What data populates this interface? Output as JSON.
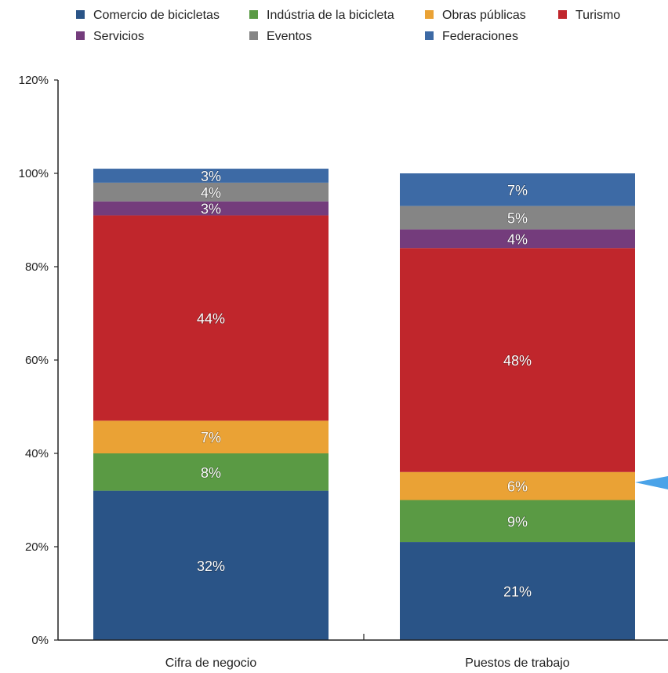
{
  "chart_data": {
    "type": "bar",
    "stacked": true,
    "categories": [
      "Cifra de negocio",
      "Puestos de trabajo"
    ],
    "series": [
      {
        "name": "Comercio de bicicletas",
        "color": "#2a5487",
        "values": [
          32,
          21
        ],
        "labels": [
          "32%",
          "21%"
        ]
      },
      {
        "name": "Indústria de la bicicleta",
        "color": "#5a9a44",
        "values": [
          8,
          9
        ],
        "labels": [
          "8%",
          "9%"
        ]
      },
      {
        "name": "Obras públicas",
        "color": "#eaa235",
        "values": [
          7,
          6
        ],
        "labels": [
          "7%",
          "6%"
        ]
      },
      {
        "name": "Turismo",
        "color": "#c0262c",
        "values": [
          44,
          48
        ],
        "labels": [
          "44%",
          "48%"
        ]
      },
      {
        "name": "Servicios",
        "color": "#743c7c",
        "values": [
          3,
          4
        ],
        "labels": [
          "3%",
          "4%"
        ]
      },
      {
        "name": "Eventos",
        "color": "#858585",
        "values": [
          4,
          5
        ],
        "labels": [
          "4%",
          "5%"
        ]
      },
      {
        "name": "Federaciones",
        "color": "#3d6aa5",
        "values": [
          3,
          7
        ],
        "labels": [
          "3%",
          "7%"
        ]
      }
    ],
    "yticks": [
      "0%",
      "20%",
      "40%",
      "60%",
      "80%",
      "100%",
      "120%"
    ],
    "ylim": [
      0,
      120
    ],
    "legend_position": "top",
    "grid": false,
    "annotation_arrow_color": "#4aa3e8"
  }
}
